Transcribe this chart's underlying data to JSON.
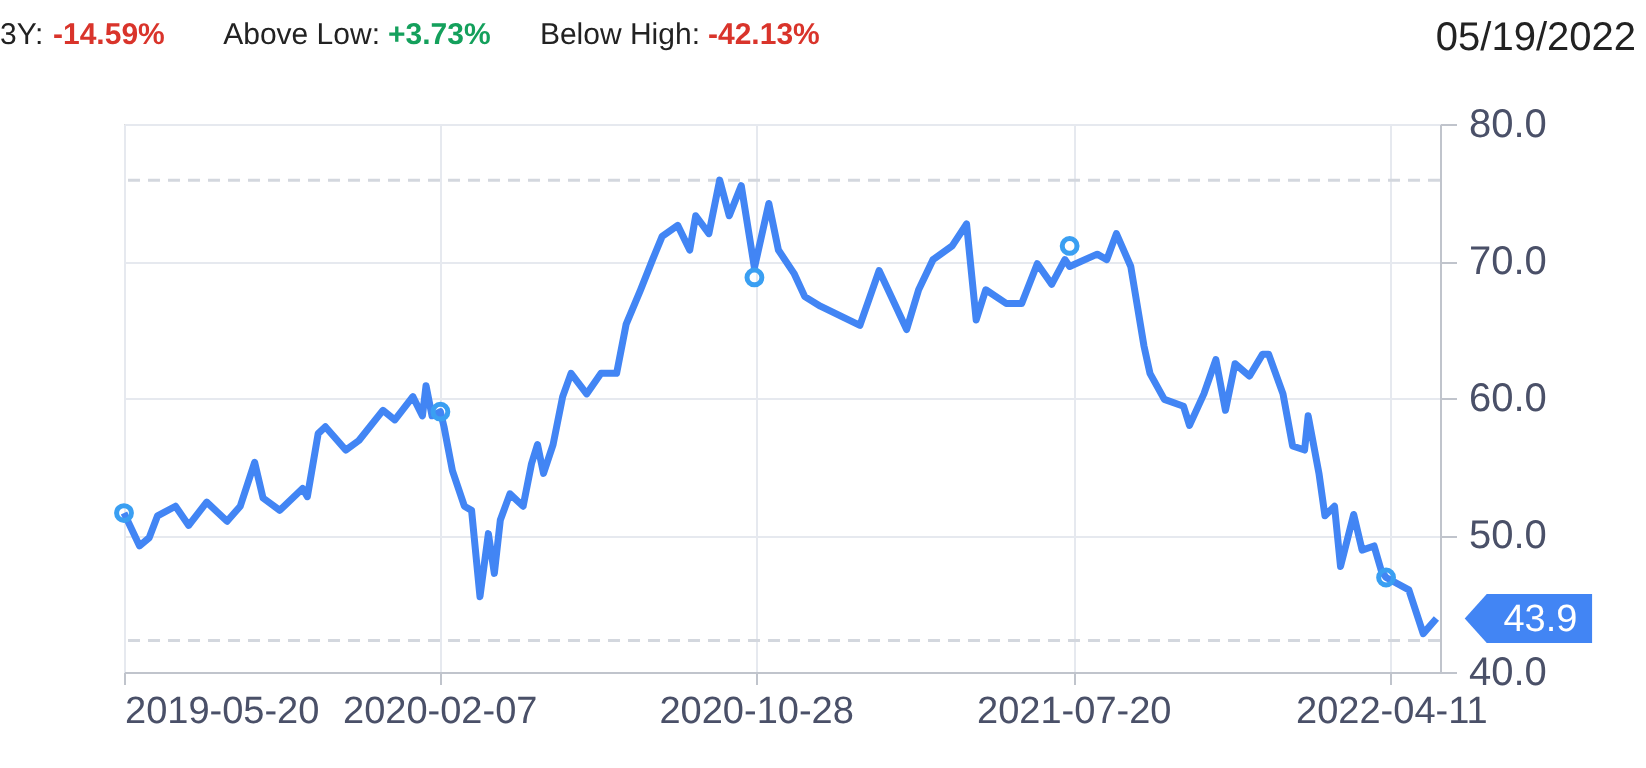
{
  "chart_data": {
    "type": "line",
    "annotations": [
      "3Y: -14.59%",
      "Above Low: +3.73%",
      "Below High: -42.13%",
      "05/19/2022",
      {
        "text": "43.9",
        "x": "2022-05-19",
        "y": 43.9
      }
    ],
    "x": [
      "2019-05-20",
      "2019-06-02",
      "2019-06-10",
      "2019-06-17",
      "2019-07-02",
      "2019-07-13",
      "2019-07-28",
      "2019-08-14",
      "2019-08-25",
      "2019-09-06",
      "2019-09-13",
      "2019-09-27",
      "2019-10-16",
      "2019-10-20",
      "2019-10-29",
      "2019-11-04",
      "2019-11-21",
      "2019-12-02",
      "2019-12-22",
      "2020-01-01",
      "2020-01-16",
      "2020-01-24",
      "2020-01-27",
      "2020-02-01",
      "2020-02-08",
      "2020-02-11",
      "2020-02-18",
      "2020-02-28",
      "2020-03-05",
      "2020-03-12",
      "2020-03-19",
      "2020-03-24",
      "2020-03-29",
      "2020-04-06",
      "2020-04-17",
      "2020-04-24",
      "2020-04-29",
      "2020-05-04",
      "2020-05-12",
      "2020-05-20",
      "2020-05-27",
      "2020-06-09",
      "2020-06-21",
      "2020-07-04",
      "2020-07-12",
      "2020-07-24",
      "2020-08-03",
      "2020-08-11",
      "2020-08-24",
      "2020-09-03",
      "2020-09-08",
      "2020-09-19",
      "2020-09-28",
      "2020-10-06",
      "2020-10-16",
      "2020-10-27",
      "2020-11-08",
      "2020-11-16",
      "2020-11-29",
      "2020-12-08",
      "2020-12-21",
      "2021-01-23",
      "2021-02-08",
      "2021-03-03",
      "2021-03-13",
      "2021-03-25",
      "2021-04-10",
      "2021-04-22",
      "2021-04-30",
      "2021-05-08",
      "2021-05-25",
      "2021-06-07",
      "2021-06-20",
      "2021-07-02",
      "2021-07-13",
      "2021-07-17",
      "2021-08-09",
      "2021-08-17",
      "2021-08-25",
      "2021-09-06",
      "2021-09-17",
      "2021-09-22",
      "2021-10-04",
      "2021-10-20",
      "2021-10-25",
      "2021-11-06",
      "2021-11-16",
      "2021-11-24",
      "2021-12-02",
      "2021-12-14",
      "2021-12-25",
      "2021-12-30",
      "2022-01-11",
      "2022-01-19",
      "2022-01-29",
      "2022-02-01",
      "2022-02-10",
      "2022-02-15",
      "2022-02-23",
      "2022-02-28",
      "2022-03-11",
      "2022-03-18",
      "2022-03-28",
      "2022-04-03",
      "2022-04-07",
      "2022-04-26",
      "2022-05-08",
      "2022-05-19"
    ],
    "series": [
      {
        "color": "#4285f4",
        "values": [
          51.6,
          49.2,
          49.8,
          51.4,
          52.1,
          50.7,
          52.4,
          51.0,
          52.1,
          55.3,
          52.7,
          51.8,
          53.4,
          52.8,
          57.4,
          57.9,
          56.2,
          56.9,
          59.1,
          58.4,
          60.1,
          58.7,
          60.9,
          58.7,
          59.0,
          57.9,
          54.7,
          52.1,
          51.8,
          45.5,
          50.1,
          47.2,
          51.1,
          53.0,
          52.1,
          55.2,
          56.6,
          54.5,
          56.6,
          60.1,
          61.8,
          60.3,
          61.8,
          61.8,
          65.4,
          67.9,
          70.1,
          71.8,
          72.6,
          70.8,
          73.3,
          72.0,
          75.9,
          73.3,
          75.5,
          69.5,
          74.2,
          70.8,
          69.1,
          67.4,
          66.7,
          65.3,
          69.3,
          65.0,
          67.9,
          70.1,
          71.1,
          72.7,
          65.7,
          67.9,
          66.9,
          66.9,
          69.8,
          68.3,
          70.1,
          69.6,
          70.5,
          70.1,
          72.0,
          69.6,
          63.8,
          61.8,
          59.9,
          59.4,
          58.0,
          60.3,
          62.8,
          59.1,
          62.5,
          61.6,
          63.2,
          63.2,
          60.3,
          56.5,
          56.2,
          58.7,
          54.5,
          51.4,
          52.1,
          47.7,
          51.5,
          48.9,
          49.2,
          47.4,
          46.9,
          46.0,
          42.8,
          43.9
        ]
      },
      {
        "type": "scatter",
        "marker": "circle",
        "color": "#3a9ff2",
        "x": [
          "2019-05-20",
          "2020-02-08",
          "2020-10-27",
          "2021-07-17",
          "2022-04-07"
        ],
        "values": [
          51.6,
          59.0,
          68.8,
          71.1,
          46.9
        ]
      }
    ],
    "xlim": [
      "2019-05-20",
      "2022-05-22"
    ],
    "xticks": [
      "2019-05-20",
      "2020-02-07",
      "2020-10-28",
      "2021-07-20",
      "2022-04-11"
    ],
    "ylim": [
      40,
      80
    ],
    "yticks": [
      {
        "value": 40,
        "label": "40.0"
      },
      {
        "value": 50,
        "label": "50.0"
      },
      {
        "value": 60,
        "label": "60.0"
      },
      {
        "value": 70,
        "label": "70.0"
      },
      {
        "value": 80,
        "label": "80.0"
      }
    ],
    "grid": true,
    "line_style": "solid",
    "ref_lines": [
      {
        "axis": "y",
        "value": 75.9,
        "line_style": "dashed",
        "color": "#d3d7de"
      },
      {
        "axis": "y",
        "value": 42.3,
        "line_style": "dashed",
        "color": "#d3d7de"
      }
    ]
  }
}
